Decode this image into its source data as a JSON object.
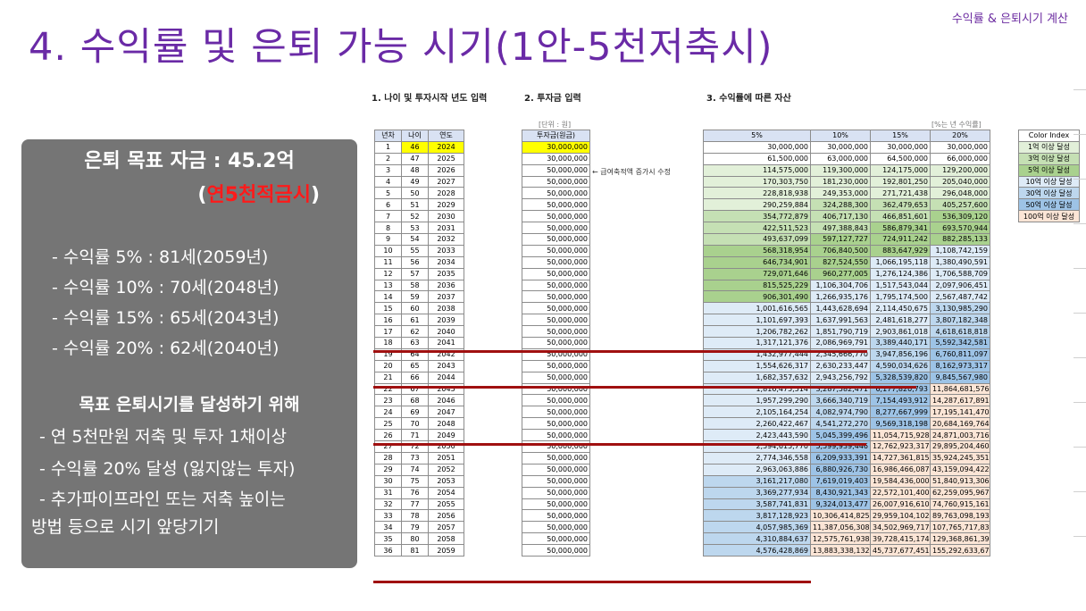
{
  "corner_label": "수익률 & 은퇴시기 계산",
  "title": "4. 수익률 및 은퇴 가능 시기(1안-5천저축시)",
  "panel": {
    "goal": "은퇴 목표 자금 : 45.2억",
    "sub_open": "(",
    "sub_red": "연5천적금시",
    "sub_close": ")",
    "rates": [
      "- 수익률  5% : 81세(2059년)",
      "- 수익률 10% : 70세(2048년)",
      "- 수익률 15% : 65세(2043년)",
      "- 수익률 20% : 62세(2040년)"
    ],
    "heading": "목표 은퇴시기를 달성하기 위해",
    "tips": [
      "- 연 5천만원 저축 및 투자 1채이상",
      "- 수익률 20% 달성 (잃지않는 투자)",
      "- 추가파이프라인 또는 저축 높이는",
      "방법 등으로 시기 앞당기기"
    ]
  },
  "sections": {
    "s1": "1. 나이 및 투자시작 년도 입력",
    "s2": "2. 투자금 입력",
    "s3": "3. 수익률에 따른 자산",
    "unit_won": "[단위 : 원]",
    "unit_rate": "[%는 년 수익률]",
    "note": "← 급여축적액 증가시 수정"
  },
  "t1": {
    "headers": [
      "년차",
      "나이",
      "연도"
    ],
    "rows": [
      [
        "1",
        "46",
        "2024"
      ],
      [
        "2",
        "47",
        "2025"
      ],
      [
        "3",
        "48",
        "2026"
      ],
      [
        "4",
        "49",
        "2027"
      ],
      [
        "5",
        "50",
        "2028"
      ],
      [
        "6",
        "51",
        "2029"
      ],
      [
        "7",
        "52",
        "2030"
      ],
      [
        "8",
        "53",
        "2031"
      ],
      [
        "9",
        "54",
        "2032"
      ],
      [
        "10",
        "55",
        "2033"
      ],
      [
        "11",
        "56",
        "2034"
      ],
      [
        "12",
        "57",
        "2035"
      ],
      [
        "13",
        "58",
        "2036"
      ],
      [
        "14",
        "59",
        "2037"
      ],
      [
        "15",
        "60",
        "2038"
      ],
      [
        "16",
        "61",
        "2039"
      ],
      [
        "17",
        "62",
        "2040"
      ],
      [
        "18",
        "63",
        "2041"
      ],
      [
        "19",
        "64",
        "2042"
      ],
      [
        "20",
        "65",
        "2043"
      ],
      [
        "21",
        "66",
        "2044"
      ],
      [
        "22",
        "67",
        "2045"
      ],
      [
        "23",
        "68",
        "2046"
      ],
      [
        "24",
        "69",
        "2047"
      ],
      [
        "25",
        "70",
        "2048"
      ],
      [
        "26",
        "71",
        "2049"
      ],
      [
        "27",
        "72",
        "2050"
      ],
      [
        "28",
        "73",
        "2051"
      ],
      [
        "29",
        "74",
        "2052"
      ],
      [
        "30",
        "75",
        "2053"
      ],
      [
        "31",
        "76",
        "2054"
      ],
      [
        "32",
        "77",
        "2055"
      ],
      [
        "33",
        "78",
        "2056"
      ],
      [
        "34",
        "79",
        "2057"
      ],
      [
        "35",
        "80",
        "2058"
      ],
      [
        "36",
        "81",
        "2059"
      ]
    ]
  },
  "t2": {
    "header": "투자금(원금)",
    "values": [
      "30,000,000",
      "30,000,000",
      "50,000,000",
      "50,000,000",
      "50,000,000",
      "50,000,000",
      "50,000,000",
      "50,000,000",
      "50,000,000",
      "50,000,000",
      "50,000,000",
      "50,000,000",
      "50,000,000",
      "50,000,000",
      "50,000,000",
      "50,000,000",
      "50,000,000",
      "50,000,000",
      "50,000,000",
      "50,000,000",
      "50,000,000",
      "50,000,000",
      "50,000,000",
      "50,000,000",
      "50,000,000",
      "50,000,000",
      "50,000,000",
      "50,000,000",
      "50,000,000",
      "50,000,000",
      "50,000,000",
      "50,000,000",
      "50,000,000",
      "50,000,000",
      "50,000,000",
      "50,000,000"
    ]
  },
  "t3": {
    "headers": [
      "5%",
      "10%",
      "15%",
      "20%"
    ],
    "rows": [
      [
        "30,000,000",
        "30,000,000",
        "30,000,000",
        "30,000,000"
      ],
      [
        "61,500,000",
        "63,000,000",
        "64,500,000",
        "66,000,000"
      ],
      [
        "114,575,000",
        "119,300,000",
        "124,175,000",
        "129,200,000"
      ],
      [
        "170,303,750",
        "181,230,000",
        "192,801,250",
        "205,040,000"
      ],
      [
        "228,818,938",
        "249,353,000",
        "271,721,438",
        "296,048,000"
      ],
      [
        "290,259,884",
        "324,288,300",
        "362,479,653",
        "405,257,600"
      ],
      [
        "354,772,879",
        "406,717,130",
        "466,851,601",
        "536,309,120"
      ],
      [
        "422,511,523",
        "497,388,843",
        "586,879,341",
        "693,570,944"
      ],
      [
        "493,637,099",
        "597,127,727",
        "724,911,242",
        "882,285,133"
      ],
      [
        "568,318,954",
        "706,840,500",
        "883,647,929",
        "1,108,742,159"
      ],
      [
        "646,734,901",
        "827,524,550",
        "1,066,195,118",
        "1,380,490,591"
      ],
      [
        "729,071,646",
        "960,277,005",
        "1,276,124,386",
        "1,706,588,709"
      ],
      [
        "815,525,229",
        "1,106,304,706",
        "1,517,543,044",
        "2,097,906,451"
      ],
      [
        "906,301,490",
        "1,266,935,176",
        "1,795,174,500",
        "2,567,487,742"
      ],
      [
        "1,001,616,565",
        "1,443,628,694",
        "2,114,450,675",
        "3,130,985,290"
      ],
      [
        "1,101,697,393",
        "1,637,991,563",
        "2,481,618,277",
        "3,807,182,348"
      ],
      [
        "1,206,782,262",
        "1,851,790,719",
        "2,903,861,018",
        "4,618,618,818"
      ],
      [
        "1,317,121,376",
        "2,086,969,791",
        "3,389,440,171",
        "5,592,342,581"
      ],
      [
        "1,432,977,444",
        "2,345,666,770",
        "3,947,856,196",
        "6,760,811,097"
      ],
      [
        "1,554,626,317",
        "2,630,233,447",
        "4,590,034,626",
        "8,162,973,317"
      ],
      [
        "1,682,357,632",
        "2,943,256,792",
        "5,328,539,820",
        "9,845,567,980"
      ],
      [
        "1,816,475,514",
        "3,287,582,471",
        "6,177,820,793",
        "11,864,681,576"
      ],
      [
        "1,957,299,290",
        "3,666,340,719",
        "7,154,493,912",
        "14,287,617,891"
      ],
      [
        "2,105,164,254",
        "4,082,974,790",
        "8,277,667,999",
        "17,195,141,470"
      ],
      [
        "2,260,422,467",
        "4,541,272,270",
        "9,569,318,198",
        "20,684,169,764"
      ],
      [
        "2,423,443,590",
        "5,045,399,496",
        "11,054,715,928",
        "24,871,003,716"
      ],
      [
        "2,594,615,770",
        "5,599,939,446",
        "12,762,923,317",
        "29,895,204,460"
      ],
      [
        "2,774,346,558",
        "6,209,933,391",
        "14,727,361,815",
        "35,924,245,351"
      ],
      [
        "2,963,063,886",
        "6,880,926,730",
        "16,986,466,087",
        "43,159,094,422"
      ],
      [
        "3,161,217,080",
        "7,619,019,403",
        "19,584,436,000",
        "51,840,913,306"
      ],
      [
        "3,369,277,934",
        "8,430,921,343",
        "22,572,101,400",
        "62,259,095,967"
      ],
      [
        "3,587,741,831",
        "9,324,013,477",
        "26,007,916,610",
        "74,760,915,161"
      ],
      [
        "3,817,128,923",
        "10,306,414,825",
        "29,959,104,102",
        "89,763,098,193"
      ],
      [
        "4,057,985,369",
        "11,387,056,308",
        "34,502,969,717",
        "107,765,717,831"
      ],
      [
        "4,310,884,637",
        "12,575,761,938",
        "39,728,415,174",
        "129,368,861,398"
      ],
      [
        "4,576,428,869",
        "13,883,338,132",
        "45,737,677,451",
        "155,292,633,677"
      ]
    ]
  },
  "color_index": {
    "title": "Color Index",
    "items": [
      {
        "label": "1억 이상 달성",
        "color": "#e2f0d9"
      },
      {
        "label": "3억 이상 달성",
        "color": "#c5e0b4"
      },
      {
        "label": "5억 이상 달성",
        "color": "#a9d18e"
      },
      {
        "label": "10억 이상 달성",
        "color": "#deebf7"
      },
      {
        "label": "30억 이상 달성",
        "color": "#bdd7ee"
      },
      {
        "label": "50억 이상 달성",
        "color": "#9dc3e6"
      },
      {
        "label": "100억 이상 달성",
        "color": "#fbe5d6"
      }
    ]
  }
}
